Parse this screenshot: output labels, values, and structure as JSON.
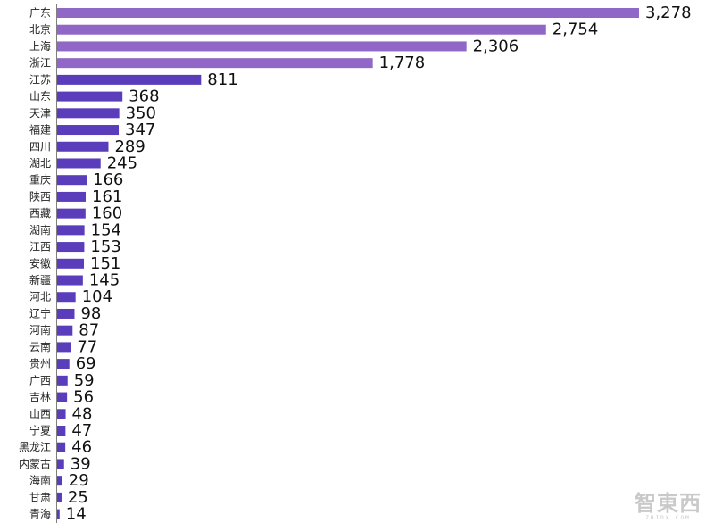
{
  "chart_data": {
    "type": "bar",
    "orientation": "horizontal",
    "categories": [
      "广东",
      "北京",
      "上海",
      "浙江",
      "江苏",
      "山东",
      "天津",
      "福建",
      "四川",
      "湖北",
      "重庆",
      "陕西",
      "西藏",
      "湖南",
      "江西",
      "安徽",
      "新疆",
      "河北",
      "辽宁",
      "河南",
      "云南",
      "贵州",
      "广西",
      "吉林",
      "山西",
      "宁夏",
      "黑龙江",
      "内蒙古",
      "海南",
      "甘肃",
      "青海"
    ],
    "values": [
      3278,
      2754,
      2306,
      1778,
      811,
      368,
      350,
      347,
      289,
      245,
      166,
      161,
      160,
      154,
      153,
      151,
      145,
      104,
      98,
      87,
      77,
      69,
      59,
      56,
      48,
      47,
      46,
      39,
      29,
      25,
      14
    ],
    "value_labels": [
      "3,278",
      "2,754",
      "2,306",
      "1,778",
      "811",
      "368",
      "350",
      "347",
      "289",
      "245",
      "166",
      "161",
      "160",
      "154",
      "153",
      "151",
      "145",
      "104",
      "98",
      "87",
      "77",
      "69",
      "59",
      "56",
      "48",
      "47",
      "46",
      "39",
      "29",
      "25",
      "14"
    ],
    "title": "",
    "xlabel": "",
    "ylabel": "",
    "xlim": [
      0,
      3278
    ],
    "grid": false,
    "legend": "none",
    "colors": {
      "light_bar": "#9067c6",
      "dark_bar": "#5a3dbb",
      "axis": "#7f7f7f"
    }
  },
  "watermark": {
    "main": "智東西",
    "sub": "ZHIDX.COM"
  }
}
